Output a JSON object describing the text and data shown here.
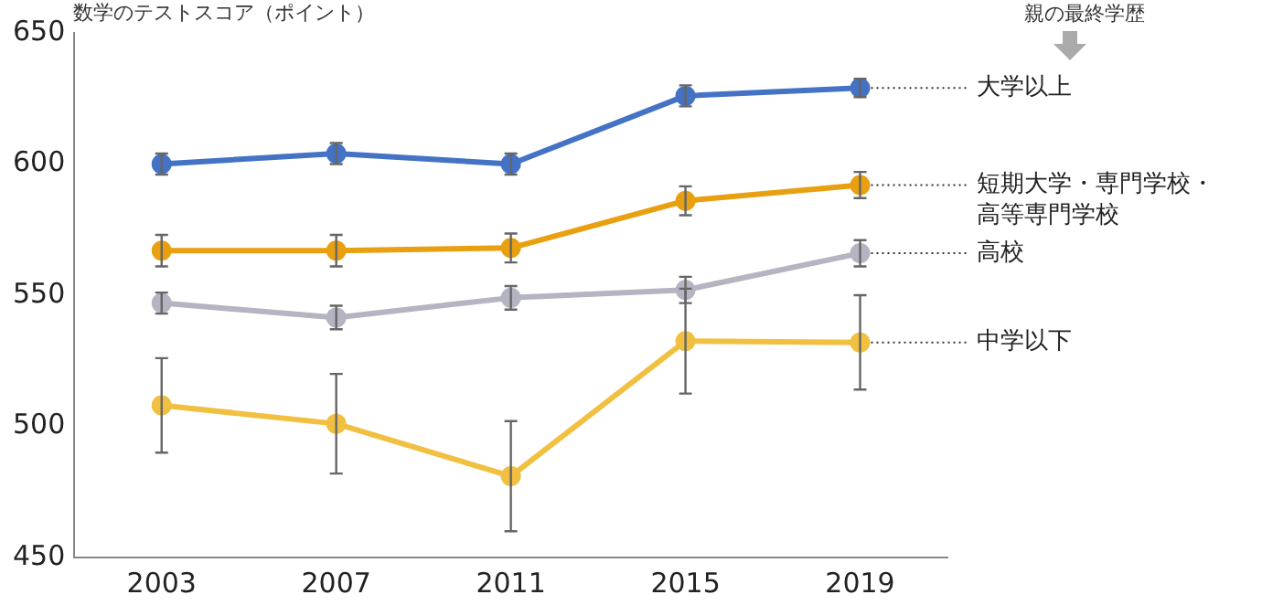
{
  "chart_data": {
    "type": "line",
    "ylabel": "数学のテストスコア（ポイント）",
    "legend_title": "親の最終学歴",
    "categories": [
      "2003",
      "2007",
      "2011",
      "2015",
      "2019"
    ],
    "ylim": [
      450,
      650
    ],
    "yticks": [
      450,
      500,
      550,
      600,
      650
    ],
    "grid": false,
    "legend": false,
    "marker": "circle",
    "line_style": "solid",
    "series": [
      {
        "name": "大学以上",
        "color": "#4472c4",
        "values": [
          600,
          604,
          600,
          626,
          629
        ],
        "errors": [
          4,
          4,
          4,
          4,
          3.5
        ]
      },
      {
        "name": "短期大学・専門学校・高等専門学校",
        "color": "#e8a010",
        "values": [
          567,
          567,
          568,
          586,
          592
        ],
        "errors": [
          6,
          6,
          5.5,
          5.5,
          5
        ]
      },
      {
        "name": "高校",
        "color": "#b4b4c2",
        "values": [
          547,
          541.5,
          549,
          552,
          566
        ],
        "errors": [
          4,
          4.5,
          4.5,
          5,
          5
        ]
      },
      {
        "name": "中学以下",
        "color": "#f2c040",
        "values": [
          508,
          501,
          481,
          532.5,
          532
        ],
        "errors": [
          18,
          19,
          21,
          20,
          18
        ]
      }
    ]
  }
}
